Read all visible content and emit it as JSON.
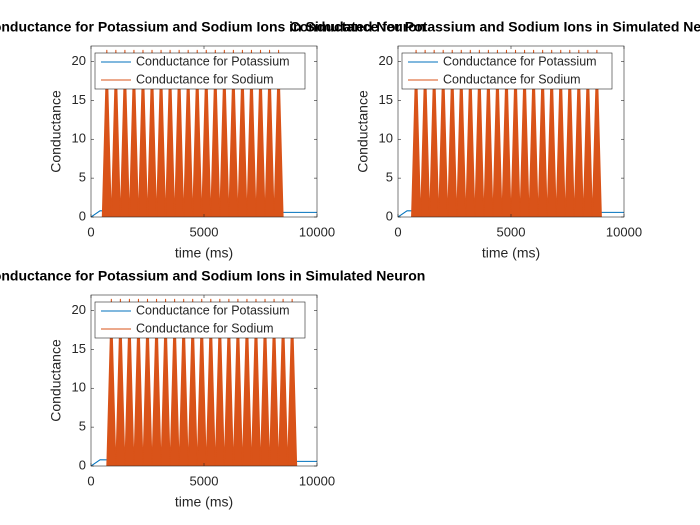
{
  "chart_data": [
    {
      "type": "line",
      "title": "Conductance for Potassium and Sodium Ions in Simulated Neuron",
      "xlabel": "time (ms)",
      "ylabel": "Conductance",
      "xlim": [
        0,
        10000
      ],
      "xticks": [
        0,
        5000,
        10000
      ],
      "ylim": [
        0,
        22
      ],
      "yticks": [
        0,
        5,
        10,
        15,
        20
      ],
      "legend": "northwest",
      "series": [
        {
          "name": "Conductance for Potassium",
          "color": "#0072BD",
          "x": [
            0,
            400,
            8600,
            10000
          ],
          "values": [
            0,
            0.8,
            0.6,
            0.6
          ]
        },
        {
          "name": "Conductance for Sodium",
          "color": "#D95319",
          "x": [
            500,
            700,
            900,
            1100,
            1300,
            1500,
            1700,
            1900,
            2100,
            2300,
            2500,
            2700,
            2900,
            3100,
            3300,
            3500,
            3700,
            3900,
            4100,
            4300,
            4500,
            4700,
            4900,
            5100,
            5300,
            5500,
            5700,
            5900,
            6100,
            6300,
            6500,
            6700,
            6900,
            7100,
            7300,
            7500,
            7700,
            7900,
            8100,
            8300,
            8500
          ],
          "values": [
            0,
            21.5,
            0,
            21.5,
            0,
            21.5,
            0,
            21.5,
            0,
            21.5,
            0,
            21.5,
            0,
            21.5,
            0,
            21.5,
            0,
            21.5,
            0,
            21.5,
            0,
            21.5,
            0,
            21.5,
            0,
            21.5,
            0,
            21.5,
            0,
            21.5,
            0,
            21.5,
            0,
            21.5,
            0,
            21.5,
            0,
            21.5,
            0,
            21.5,
            0
          ]
        }
      ]
    },
    {
      "type": "line",
      "title": "Conductance for Potassium and Sodium Ions in Simulated Neuron",
      "xlabel": "time (ms)",
      "ylabel": "Conductance",
      "xlim": [
        0,
        10000
      ],
      "xticks": [
        0,
        5000,
        10000
      ],
      "ylim": [
        0,
        22
      ],
      "yticks": [
        0,
        5,
        10,
        15,
        20
      ],
      "legend": "northwest",
      "series": [
        {
          "name": "Conductance for Potassium",
          "color": "#0072BD",
          "x": [
            0,
            400,
            9000,
            10000
          ],
          "values": [
            0,
            0.8,
            0.6,
            0.6
          ]
        },
        {
          "name": "Conductance for Sodium",
          "color": "#D95319",
          "x": [
            600,
            800,
            1000,
            1200,
            1400,
            1600,
            1800,
            2000,
            2200,
            2400,
            2600,
            2800,
            3000,
            3200,
            3400,
            3600,
            3800,
            4000,
            4200,
            4400,
            4600,
            4800,
            5000,
            5200,
            5400,
            5600,
            5800,
            6000,
            6200,
            6400,
            6600,
            6800,
            7000,
            7200,
            7400,
            7600,
            7800,
            8000,
            8200,
            8400,
            8600,
            8800,
            9000
          ],
          "values": [
            0,
            21.5,
            0,
            21.5,
            0,
            21.5,
            0,
            21.5,
            0,
            21.5,
            0,
            21.5,
            0,
            21.5,
            0,
            21.5,
            0,
            21.5,
            0,
            21.5,
            0,
            21.5,
            0,
            21.5,
            0,
            21.5,
            0,
            21.5,
            0,
            21.5,
            0,
            21.5,
            0,
            21.5,
            0,
            21.5,
            0,
            21.5,
            0,
            21.5,
            0,
            21.5,
            0
          ]
        }
      ]
    },
    {
      "type": "line",
      "title": "Conductance for Potassium and Sodium Ions in Simulated Neuron",
      "xlabel": "time (ms)",
      "ylabel": "Conductance",
      "xlim": [
        0,
        10000
      ],
      "xticks": [
        0,
        5000,
        10000
      ],
      "ylim": [
        0,
        22
      ],
      "yticks": [
        0,
        5,
        10,
        15,
        20
      ],
      "legend": "northwest",
      "series": [
        {
          "name": "Conductance for Potassium",
          "color": "#0072BD",
          "x": [
            0,
            400,
            9100,
            10000
          ],
          "values": [
            0,
            0.8,
            0.6,
            0.6
          ]
        },
        {
          "name": "Conductance for Sodium",
          "color": "#D95319",
          "x": [
            700,
            900,
            1100,
            1300,
            1500,
            1700,
            1900,
            2100,
            2300,
            2500,
            2700,
            2900,
            3100,
            3300,
            3500,
            3700,
            3900,
            4100,
            4300,
            4500,
            4700,
            4900,
            5100,
            5300,
            5500,
            5700,
            5900,
            6100,
            6300,
            6500,
            6700,
            6900,
            7100,
            7300,
            7500,
            7700,
            7900,
            8100,
            8300,
            8500,
            8700,
            8900,
            9100
          ],
          "values": [
            0,
            21.5,
            0,
            21.5,
            0,
            21.5,
            0,
            21.5,
            0,
            21.5,
            0,
            21.5,
            0,
            21.5,
            0,
            21.5,
            0,
            21.5,
            0,
            21.5,
            0,
            21.5,
            0,
            21.5,
            0,
            21.5,
            0,
            21.5,
            0,
            21.5,
            0,
            21.5,
            0,
            21.5,
            0,
            21.5,
            0,
            21.5,
            0,
            21.5,
            0,
            21.5,
            0
          ]
        }
      ]
    }
  ]
}
